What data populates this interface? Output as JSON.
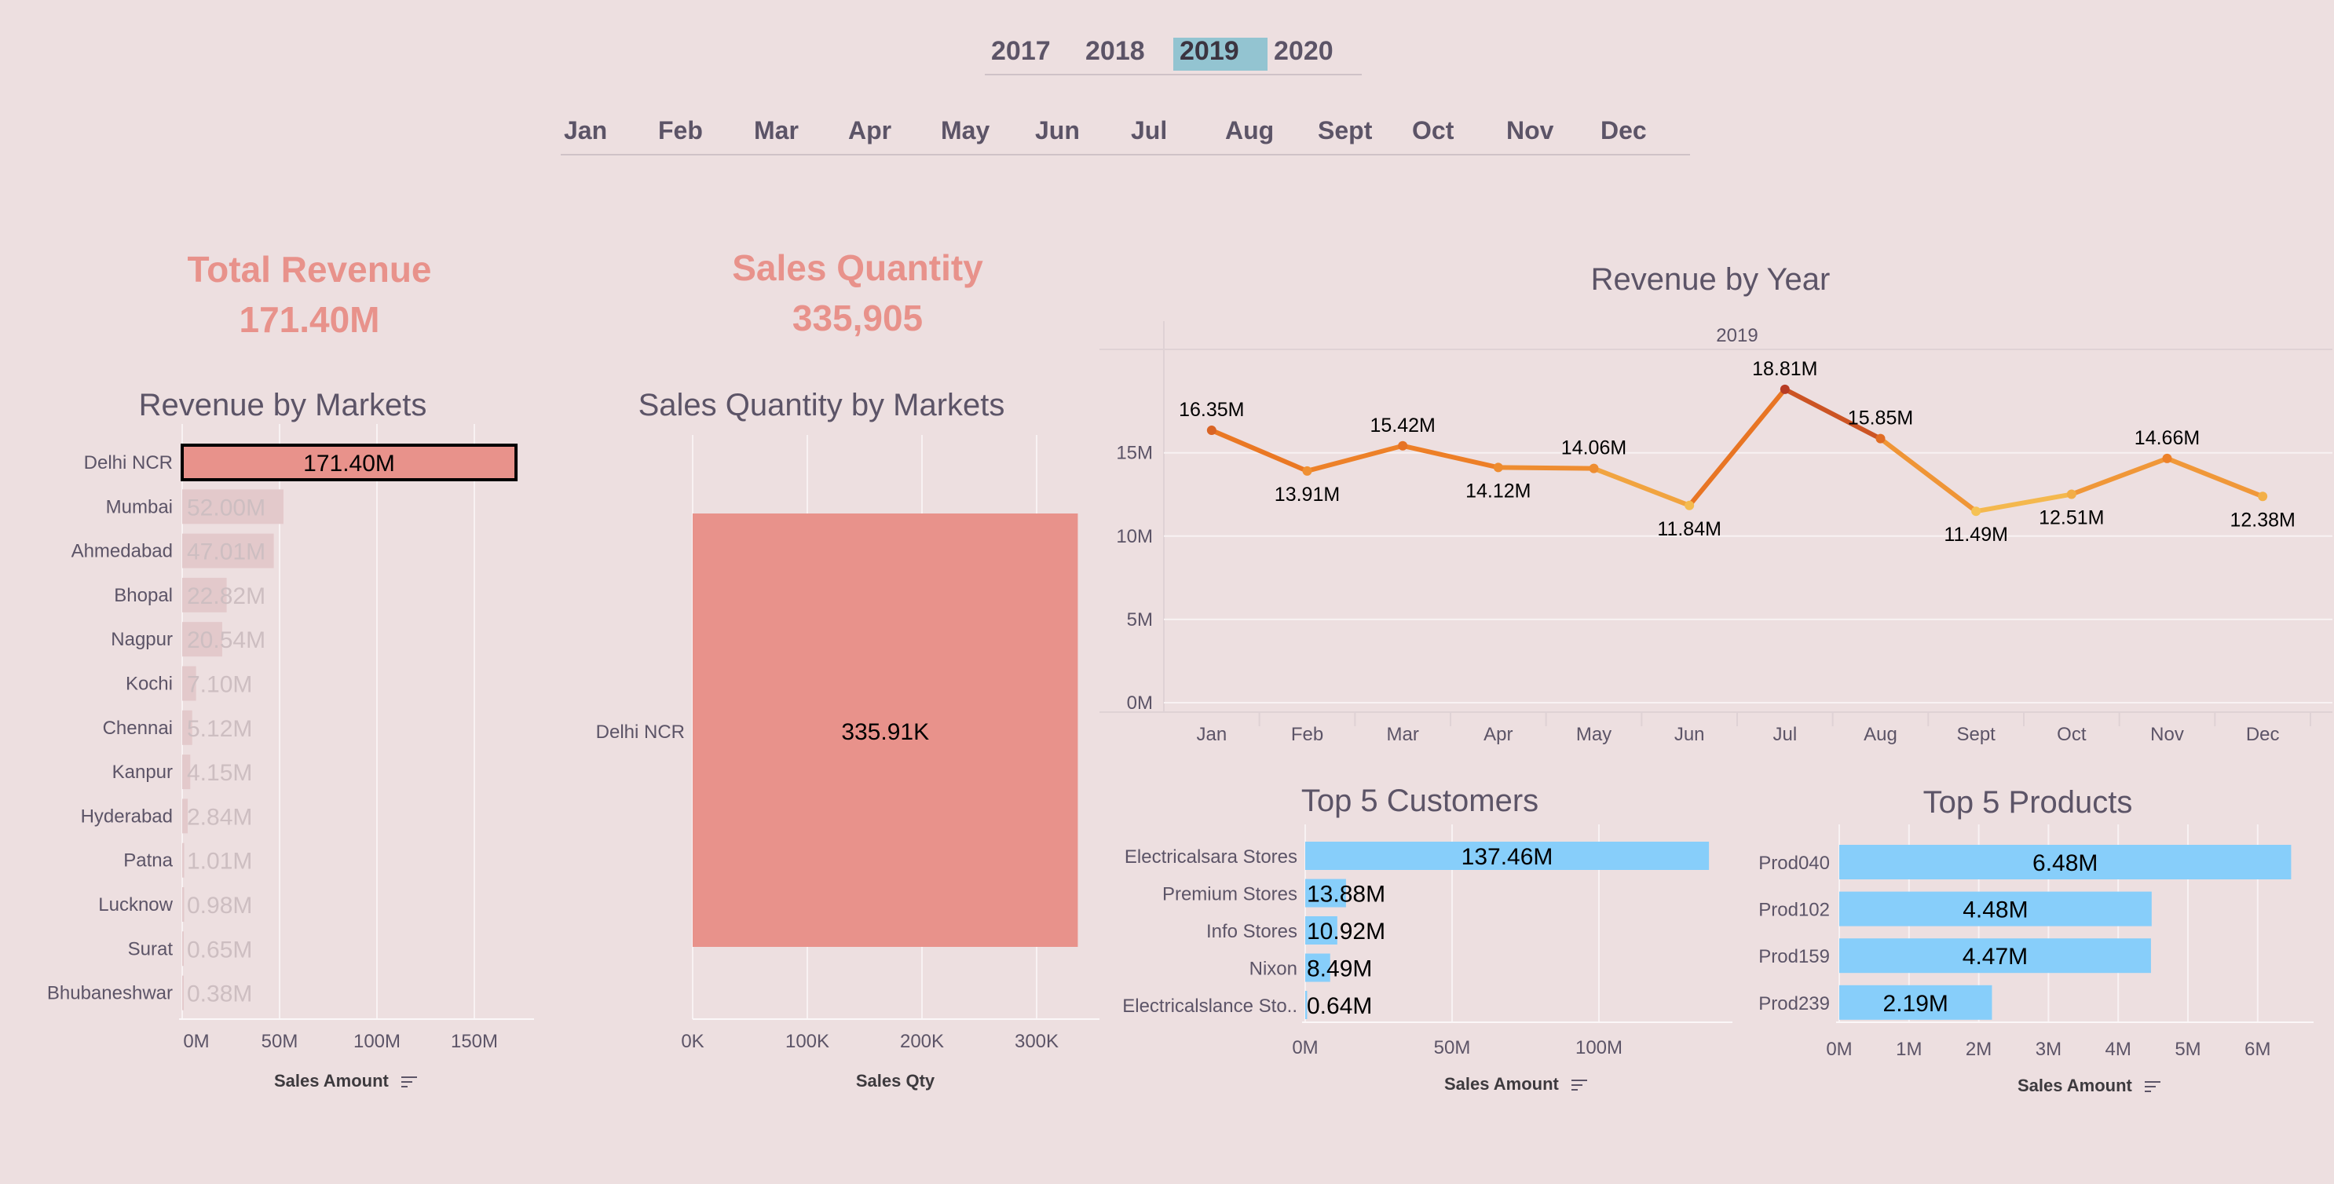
{
  "filters": {
    "years": [
      "2017",
      "2018",
      "2019",
      "2020"
    ],
    "selected_year": "2019",
    "months": [
      "Jan",
      "Feb",
      "Mar",
      "Apr",
      "May",
      "Jun",
      "Jul",
      "Aug",
      "Sept",
      "Oct",
      "Nov",
      "Dec"
    ]
  },
  "kpis": {
    "revenue_title": "Total Revenue",
    "revenue_value": "171.40M",
    "qty_title": "Sales Quantity",
    "qty_value": "335,905"
  },
  "colors": {
    "background": "#eddfe0",
    "accent": "#e8928b",
    "bar_blue": "#87cefa",
    "selected_year": "#93c4d1",
    "faded_bar": "#e3c9cb",
    "line_start": "#ec7a24",
    "line_light": "#f5c456",
    "line_dark": "#b63a24"
  },
  "chart_data": [
    {
      "type": "bar",
      "title": "Revenue by Markets",
      "categories": [
        "Delhi NCR",
        "Mumbai",
        "Ahmedabad",
        "Bhopal",
        "Nagpur",
        "Kochi",
        "Chennai",
        "Kanpur",
        "Hyderabad",
        "Patna",
        "Lucknow",
        "Surat",
        "Bhubaneshwar"
      ],
      "values": [
        171.4,
        52.0,
        47.01,
        22.82,
        20.54,
        7.1,
        5.12,
        4.15,
        2.84,
        1.01,
        0.98,
        0.65,
        0.38
      ],
      "labels": [
        "171.40M",
        "52.00M",
        "47.01M",
        "22.82M",
        "20.54M",
        "7.10M",
        "5.12M",
        "4.15M",
        "2.84M",
        "1.01M",
        "0.98M",
        "0.65M",
        "0.38M"
      ],
      "highlighted": "Delhi NCR",
      "xticks": [
        "0M",
        "50M",
        "100M",
        "150M"
      ],
      "xlabel": "Sales Amount",
      "xlim": [
        0,
        180
      ]
    },
    {
      "type": "bar",
      "title": "Sales Quantity by Markets",
      "categories": [
        "Delhi NCR"
      ],
      "values": [
        335.91
      ],
      "labels": [
        "335.91K"
      ],
      "xticks": [
        "0K",
        "100K",
        "200K",
        "300K"
      ],
      "xlabel": "Sales Qty",
      "xlim": [
        0,
        350
      ]
    },
    {
      "type": "line",
      "title": "Revenue by Year",
      "panel": "2019",
      "x": [
        "Jan",
        "Feb",
        "Mar",
        "Apr",
        "May",
        "Jun",
        "Jul",
        "Aug",
        "Sept",
        "Oct",
        "Nov",
        "Dec"
      ],
      "values": [
        16.35,
        13.91,
        15.42,
        14.12,
        14.06,
        11.84,
        18.81,
        15.85,
        11.49,
        12.51,
        14.66,
        12.38
      ],
      "labels": [
        "16.35M",
        "13.91M",
        "15.42M",
        "14.12M",
        "14.06M",
        "11.84M",
        "18.81M",
        "15.85M",
        "11.49M",
        "12.51M",
        "14.66M",
        "12.38M"
      ],
      "yticks": [
        "0M",
        "5M",
        "10M",
        "15M"
      ],
      "ylim": [
        0,
        20.5
      ]
    },
    {
      "type": "bar",
      "title": "Top 5 Customers",
      "categories": [
        "Electricalsara Stores",
        "Premium Stores",
        "Info Stores",
        "Nixon",
        "Electricalslance Sto.."
      ],
      "values": [
        137.46,
        13.88,
        10.92,
        8.49,
        0.64
      ],
      "labels": [
        "137.46M",
        "13.88M",
        "10.92M",
        "8.49M",
        "0.64M"
      ],
      "xticks": [
        "0M",
        "50M",
        "100M"
      ],
      "xlabel": "Sales Amount",
      "xlim": [
        0,
        145
      ]
    },
    {
      "type": "bar",
      "title": "Top 5 Products",
      "categories": [
        "Prod040",
        "Prod102",
        "Prod159",
        "Prod239"
      ],
      "values": [
        6.48,
        4.48,
        4.47,
        2.19
      ],
      "labels": [
        "6.48M",
        "4.48M",
        "4.47M",
        "2.19M"
      ],
      "xticks": [
        "0M",
        "1M",
        "2M",
        "3M",
        "4M",
        "5M",
        "6M"
      ],
      "xlabel": "Sales Amount",
      "xlim": [
        0,
        6.6
      ]
    }
  ]
}
